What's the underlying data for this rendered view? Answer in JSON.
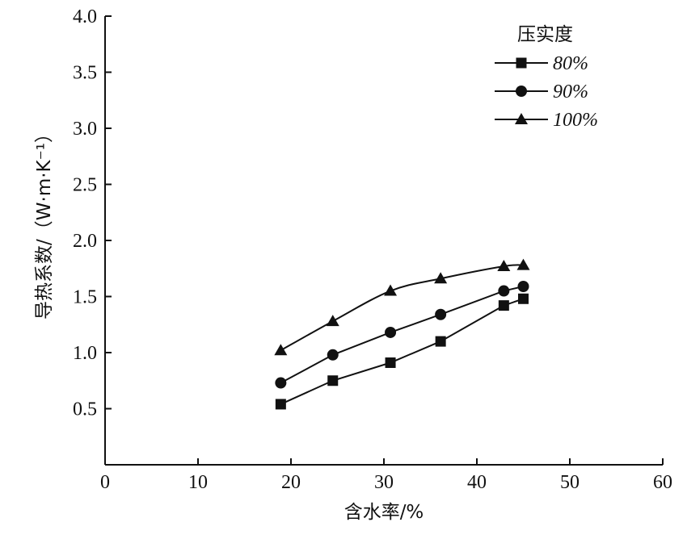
{
  "chart_data": {
    "type": "line",
    "xlabel": "含水率/%",
    "ylabel": "导热系数/（W·m·K⁻¹）",
    "xlim": [
      0,
      60
    ],
    "ylim": [
      0,
      4.0
    ],
    "xticks": [
      "0",
      "10",
      "20",
      "30",
      "40",
      "50",
      "60"
    ],
    "yticks": [
      "0.5",
      "1.0",
      "1.5",
      "2.0",
      "2.5",
      "3.0",
      "3.5",
      "4.0"
    ],
    "grid": false,
    "legend": {
      "title": "压实度",
      "position": "top-right"
    },
    "series": [
      {
        "name": "80%",
        "marker": "square",
        "x": [
          18.9,
          24.5,
          30.7,
          36.1,
          42.9,
          45.0
        ],
        "y": [
          0.54,
          0.75,
          0.91,
          1.1,
          1.42,
          1.48
        ]
      },
      {
        "name": "90%",
        "marker": "circle",
        "x": [
          18.9,
          24.5,
          30.7,
          36.1,
          42.9,
          45.0
        ],
        "y": [
          0.73,
          0.98,
          1.18,
          1.34,
          1.55,
          1.59
        ]
      },
      {
        "name": "100%",
        "marker": "triangle",
        "x": [
          18.9,
          24.5,
          30.7,
          36.1,
          42.9,
          45.0
        ],
        "y": [
          1.02,
          1.28,
          1.55,
          1.66,
          1.77,
          1.78
        ]
      }
    ]
  }
}
